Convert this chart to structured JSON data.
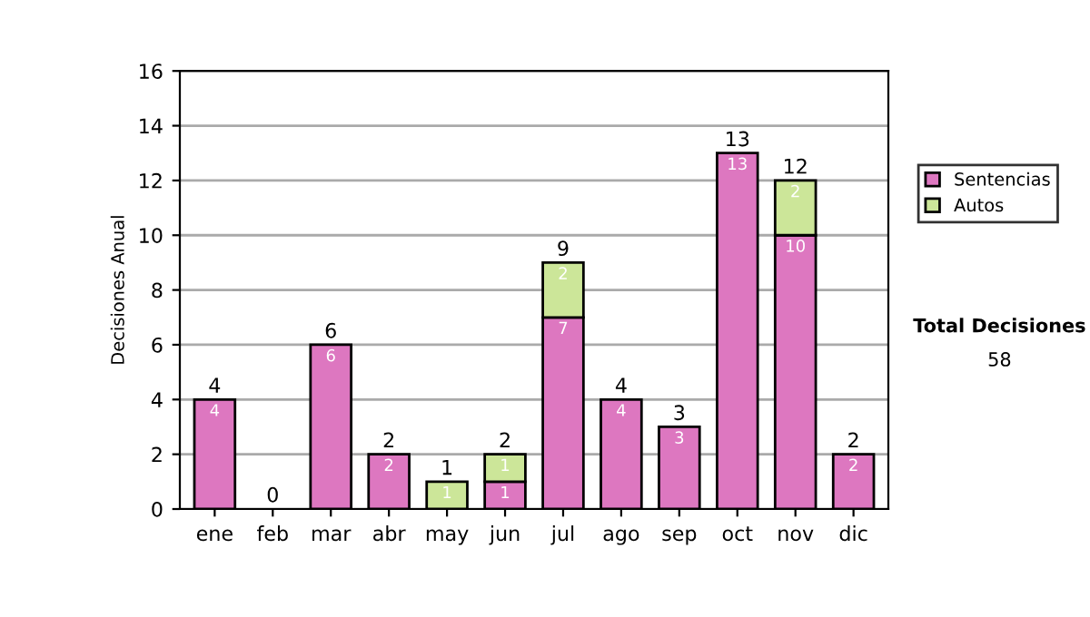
{
  "chart_data": {
    "type": "bar",
    "stacked": true,
    "ylabel": "Decisiones Anual",
    "categories": [
      "ene",
      "feb",
      "mar",
      "abr",
      "may",
      "jun",
      "jul",
      "ago",
      "sep",
      "oct",
      "nov",
      "dic"
    ],
    "series": [
      {
        "name": "Sentencias",
        "color": "#dd77c0",
        "values": [
          4,
          0,
          6,
          2,
          0,
          1,
          7,
          4,
          3,
          13,
          10,
          2
        ],
        "value_labels": [
          "4",
          null,
          "6",
          "2",
          null,
          "1",
          "7",
          "4",
          "3",
          "13",
          "10",
          "2"
        ]
      },
      {
        "name": "Autos",
        "color": "#cce699",
        "values": [
          0,
          0,
          0,
          0,
          1,
          1,
          2,
          0,
          0,
          0,
          2,
          0
        ],
        "value_labels": [
          null,
          null,
          null,
          null,
          "1",
          "1",
          "2",
          null,
          null,
          null,
          "2",
          null
        ]
      }
    ],
    "totals": [
      "4",
      "0",
      "6",
      "2",
      "1",
      "2",
      "9",
      "4",
      "3",
      "13",
      "12",
      "2"
    ],
    "ylim": [
      0,
      16
    ],
    "yticks": [
      0,
      2,
      4,
      6,
      8,
      10,
      12,
      14,
      16
    ],
    "grid": "y",
    "legend": "right",
    "annotations": [
      "Total Decisiones",
      "58"
    ]
  }
}
